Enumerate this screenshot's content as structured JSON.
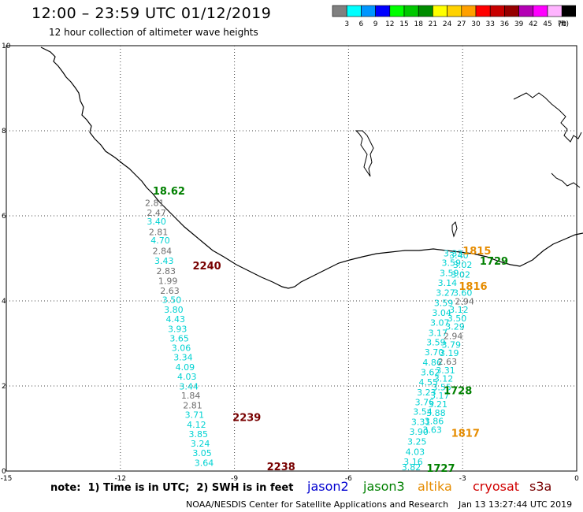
{
  "header": {
    "title": "12:00 – 23:59 UTC 01/12/2019",
    "subtitle": "12 hour collection of altimeter wave heights"
  },
  "legend": {
    "unit": "(ft)",
    "bins": [
      {
        "label": "3",
        "color": "#808080"
      },
      {
        "label": "6",
        "color": "#00ffff"
      },
      {
        "label": "9",
        "color": "#0096ff"
      },
      {
        "label": "12",
        "color": "#0000ff"
      },
      {
        "label": "15",
        "color": "#00ff00"
      },
      {
        "label": "18",
        "color": "#00c800"
      },
      {
        "label": "21",
        "color": "#008c00"
      },
      {
        "label": "24",
        "color": "#ffff00"
      },
      {
        "label": "27",
        "color": "#ffd200"
      },
      {
        "label": "30",
        "color": "#ffa000"
      },
      {
        "label": "33",
        "color": "#ff0000"
      },
      {
        "label": "36",
        "color": "#c80000"
      },
      {
        "label": "39",
        "color": "#960000"
      },
      {
        "label": "42",
        "color": "#b400b4"
      },
      {
        "label": "45",
        "color": "#ff00ff"
      },
      {
        "label": "70",
        "color": "#ffb4ff"
      },
      {
        "label": "",
        "color": "#000000"
      }
    ]
  },
  "map": {
    "lon_range": [
      -15,
      0
    ],
    "lat_range": [
      0,
      10
    ],
    "lon_ticks": [
      "-15",
      "-12",
      "-9",
      "-6",
      "-3",
      "0"
    ],
    "lat_ticks": [
      "0",
      "2",
      "4",
      "6",
      "8",
      "10"
    ],
    "colors": {
      "cyan": "#00d2d2",
      "gray": "#6e6e6e",
      "jason3": "#008000",
      "altika": "#e68c00",
      "s3a": "#780000",
      "dark_green": "#007000"
    }
  },
  "tracks": [
    {
      "name": "west-track",
      "points": [
        {
          "lon": -11.1,
          "lat": 6.23,
          "v": "2.81",
          "c": "gray"
        },
        {
          "lon": -11.05,
          "lat": 6.0,
          "v": "2.47",
          "c": "gray"
        },
        {
          "lon": -11.05,
          "lat": 5.8,
          "v": "3.40",
          "c": "cyan"
        },
        {
          "lon": -11.0,
          "lat": 5.55,
          "v": "2.81",
          "c": "gray"
        },
        {
          "lon": -10.95,
          "lat": 5.35,
          "v": "4.70",
          "c": "cyan"
        },
        {
          "lon": -10.9,
          "lat": 5.1,
          "v": "2.84",
          "c": "gray"
        },
        {
          "lon": -10.85,
          "lat": 4.87,
          "v": "3.43",
          "c": "cyan"
        },
        {
          "lon": -10.8,
          "lat": 4.63,
          "v": "2.83",
          "c": "gray"
        },
        {
          "lon": -10.75,
          "lat": 4.4,
          "v": "1.99",
          "c": "gray"
        },
        {
          "lon": -10.7,
          "lat": 4.17,
          "v": "2.63",
          "c": "gray"
        },
        {
          "lon": -10.65,
          "lat": 3.95,
          "v": "3.50",
          "c": "cyan"
        },
        {
          "lon": -10.6,
          "lat": 3.72,
          "v": "3.80",
          "c": "cyan"
        },
        {
          "lon": -10.55,
          "lat": 3.5,
          "v": "4.43",
          "c": "cyan"
        },
        {
          "lon": -10.5,
          "lat": 3.27,
          "v": "3.93",
          "c": "cyan"
        },
        {
          "lon": -10.45,
          "lat": 3.05,
          "v": "3.65",
          "c": "cyan"
        },
        {
          "lon": -10.4,
          "lat": 2.82,
          "v": "3.06",
          "c": "cyan"
        },
        {
          "lon": -10.35,
          "lat": 2.6,
          "v": "3.34",
          "c": "cyan"
        },
        {
          "lon": -10.3,
          "lat": 2.37,
          "v": "4.09",
          "c": "cyan"
        },
        {
          "lon": -10.25,
          "lat": 2.15,
          "v": "4.03",
          "c": "cyan"
        },
        {
          "lon": -10.2,
          "lat": 1.92,
          "v": "3.44",
          "c": "cyan"
        },
        {
          "lon": -10.15,
          "lat": 1.7,
          "v": "1.84",
          "c": "gray"
        },
        {
          "lon": -10.1,
          "lat": 1.47,
          "v": "2.81",
          "c": "gray"
        },
        {
          "lon": -10.05,
          "lat": 1.25,
          "v": "3.71",
          "c": "cyan"
        },
        {
          "lon": -10.0,
          "lat": 1.02,
          "v": "4.12",
          "c": "cyan"
        },
        {
          "lon": -9.95,
          "lat": 0.8,
          "v": "3.85",
          "c": "cyan"
        },
        {
          "lon": -9.9,
          "lat": 0.57,
          "v": "3.24",
          "c": "cyan"
        },
        {
          "lon": -9.85,
          "lat": 0.35,
          "v": "3.05",
          "c": "cyan"
        },
        {
          "lon": -9.8,
          "lat": 0.12,
          "v": "3.64",
          "c": "cyan"
        }
      ]
    },
    {
      "name": "east-track-a",
      "points": [
        {
          "lon": -3.25,
          "lat": 5.05,
          "v": "3.33",
          "c": "cyan"
        },
        {
          "lon": -3.3,
          "lat": 4.82,
          "v": "3.59",
          "c": "cyan"
        },
        {
          "lon": -3.35,
          "lat": 4.58,
          "v": "3.59",
          "c": "cyan"
        },
        {
          "lon": -3.4,
          "lat": 4.35,
          "v": "3.14",
          "c": "cyan"
        },
        {
          "lon": -3.45,
          "lat": 4.12,
          "v": "3.27",
          "c": "cyan"
        },
        {
          "lon": -3.5,
          "lat": 3.88,
          "v": "3.59",
          "c": "cyan"
        },
        {
          "lon": -3.55,
          "lat": 3.65,
          "v": "3.04",
          "c": "cyan"
        },
        {
          "lon": -3.6,
          "lat": 3.42,
          "v": "3.07",
          "c": "cyan"
        },
        {
          "lon": -3.65,
          "lat": 3.18,
          "v": "3.17",
          "c": "cyan"
        },
        {
          "lon": -3.7,
          "lat": 2.95,
          "v": "3.59",
          "c": "cyan"
        },
        {
          "lon": -3.75,
          "lat": 2.72,
          "v": "3.70",
          "c": "cyan"
        },
        {
          "lon": -3.8,
          "lat": 2.48,
          "v": "4.86",
          "c": "cyan"
        },
        {
          "lon": -3.85,
          "lat": 2.25,
          "v": "3.62",
          "c": "cyan"
        },
        {
          "lon": -3.9,
          "lat": 2.02,
          "v": "4.55",
          "c": "cyan"
        },
        {
          "lon": -3.95,
          "lat": 1.78,
          "v": "3.23",
          "c": "cyan"
        },
        {
          "lon": -4.0,
          "lat": 1.55,
          "v": "3.76",
          "c": "cyan"
        },
        {
          "lon": -4.05,
          "lat": 1.32,
          "v": "3.54",
          "c": "cyan"
        },
        {
          "lon": -4.1,
          "lat": 1.08,
          "v": "3.31",
          "c": "cyan"
        },
        {
          "lon": -4.15,
          "lat": 0.85,
          "v": "3.90",
          "c": "cyan"
        },
        {
          "lon": -4.2,
          "lat": 0.62,
          "v": "3.25",
          "c": "cyan"
        },
        {
          "lon": -4.25,
          "lat": 0.38,
          "v": "4.03",
          "c": "cyan"
        },
        {
          "lon": -4.3,
          "lat": 0.15,
          "v": "3.16",
          "c": "cyan"
        },
        {
          "lon": -4.35,
          "lat": 0.02,
          "v": "3.82",
          "c": "cyan"
        }
      ]
    },
    {
      "name": "east-track-b",
      "points": [
        {
          "lon": -3.1,
          "lat": 5.0,
          "v": "3.40",
          "c": "cyan"
        },
        {
          "lon": -3.0,
          "lat": 4.78,
          "v": "3.02",
          "c": "cyan"
        },
        {
          "lon": -3.05,
          "lat": 4.55,
          "v": "3.02",
          "c": "cyan"
        },
        {
          "lon": -3.0,
          "lat": 4.12,
          "v": "3.60",
          "c": "cyan"
        },
        {
          "lon": -2.95,
          "lat": 3.92,
          "v": "2.94",
          "c": "gray"
        },
        {
          "lon": -3.1,
          "lat": 3.72,
          "v": "3.12",
          "c": "cyan"
        },
        {
          "lon": -3.15,
          "lat": 3.52,
          "v": "3.50",
          "c": "cyan"
        },
        {
          "lon": -3.2,
          "lat": 3.32,
          "v": "3.29",
          "c": "cyan"
        },
        {
          "lon": -3.25,
          "lat": 3.1,
          "v": "2.94",
          "c": "gray"
        },
        {
          "lon": -3.3,
          "lat": 2.9,
          "v": "3.79",
          "c": "cyan"
        },
        {
          "lon": -3.35,
          "lat": 2.7,
          "v": "3.19",
          "c": "cyan"
        },
        {
          "lon": -3.4,
          "lat": 2.5,
          "v": "2.63",
          "c": "gray"
        },
        {
          "lon": -3.45,
          "lat": 2.3,
          "v": "3.31",
          "c": "cyan"
        },
        {
          "lon": -3.5,
          "lat": 2.1,
          "v": "3.12",
          "c": "cyan"
        },
        {
          "lon": -3.55,
          "lat": 1.9,
          "v": "3.55",
          "c": "cyan"
        },
        {
          "lon": -3.6,
          "lat": 1.7,
          "v": "3.17",
          "c": "cyan"
        },
        {
          "lon": -3.65,
          "lat": 1.5,
          "v": "3.21",
          "c": "cyan"
        },
        {
          "lon": -3.7,
          "lat": 1.3,
          "v": "3.88",
          "c": "cyan"
        },
        {
          "lon": -3.75,
          "lat": 1.1,
          "v": "3.86",
          "c": "cyan"
        },
        {
          "lon": -3.8,
          "lat": 0.9,
          "v": "3.63",
          "c": "cyan"
        }
      ]
    }
  ],
  "time_labels": [
    {
      "lon": -11.15,
      "lat": 6.5,
      "v": "18.62",
      "c": "jason3"
    },
    {
      "lon": -10.1,
      "lat": 4.74,
      "v": "2240",
      "c": "s3a"
    },
    {
      "lon": -9.05,
      "lat": 1.18,
      "v": "2239",
      "c": "s3a"
    },
    {
      "lon": -8.15,
      "lat": 0.02,
      "v": "2238",
      "c": "s3a"
    },
    {
      "lon": -3.0,
      "lat": 5.09,
      "v": "1815",
      "c": "altika"
    },
    {
      "lon": -2.55,
      "lat": 4.85,
      "v": "1729",
      "c": "jason3"
    },
    {
      "lon": -3.1,
      "lat": 4.26,
      "v": "1816",
      "c": "altika"
    },
    {
      "lon": -3.5,
      "lat": 1.81,
      "v": "1728",
      "c": "jason3"
    },
    {
      "lon": -3.3,
      "lat": 0.81,
      "v": "1817",
      "c": "altika"
    },
    {
      "lon": -3.95,
      "lat": -0.02,
      "v": "1727",
      "c": "jason3"
    }
  ],
  "footer": {
    "note": "note:  1) Time is in UTC;  2) SWH is in feet",
    "satellites": [
      {
        "name": "jason2",
        "color": "#0000d0"
      },
      {
        "name": "jason3",
        "color": "#008000"
      },
      {
        "name": "altika",
        "color": "#e68c00"
      },
      {
        "name": "cryosat",
        "color": "#d00000"
      },
      {
        "name": "s3a",
        "color": "#780000"
      }
    ],
    "credit": "NOAA/NESDIS Center for Satellite Applications and Research",
    "timestamp": "Jan 13 13:27:44 UTC 2019"
  }
}
